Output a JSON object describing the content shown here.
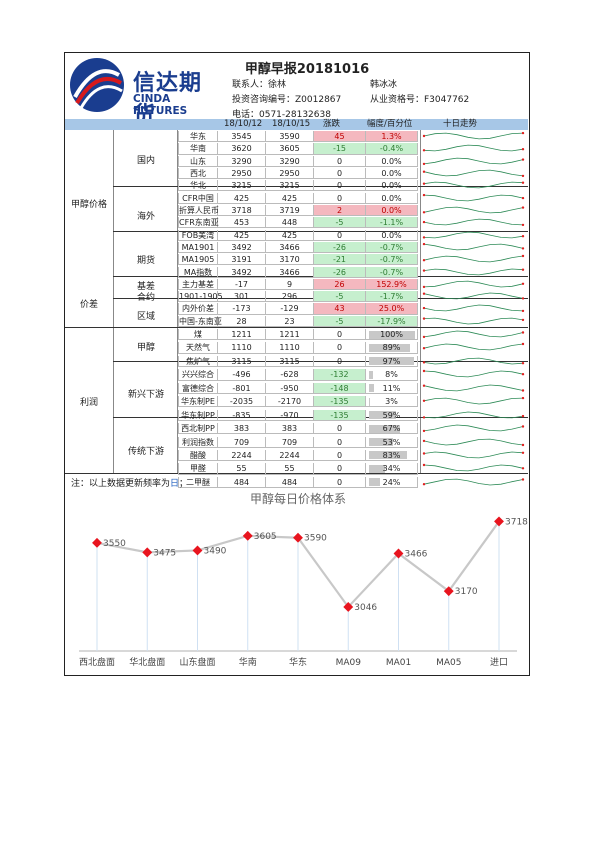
{
  "header": {
    "logo_cn": "信达期货",
    "logo_en": "CINDA FUTURES",
    "title": "甲醇早报20181016",
    "contact_label": "联系人：徐林",
    "contact2": "韩冰冰",
    "advisor_id": "投资咨询编号：Z0012867",
    "license_id": "从业资格号：F3047762",
    "phone": "电话：0571-28132638"
  },
  "columns": {
    "d1": "18/10/12",
    "d2": "18/10/15",
    "chg": "涨跌",
    "pct": "幅度/百分位",
    "trend": "十日走势"
  },
  "groups": {
    "methanol_price": "甲醇价格",
    "spread": "价差",
    "profit": "利润"
  },
  "sections": {
    "domestic": "国内",
    "overseas": "海外",
    "futures": "期货",
    "basis": "基差",
    "contract": "合约",
    "region": "区域",
    "methanol": "甲醇",
    "new_downstream": "新兴下游",
    "trad_downstream": "传统下游"
  },
  "rows": [
    {
      "name": "华东",
      "v1": "3545",
      "v2": "3590",
      "chg": "45",
      "pct": "1.3%",
      "sign": "pos"
    },
    {
      "name": "华南",
      "v1": "3620",
      "v2": "3605",
      "chg": "-15",
      "pct": "-0.4%",
      "sign": "neg"
    },
    {
      "name": "山东",
      "v1": "3290",
      "v2": "3290",
      "chg": "0",
      "pct": "0.0%",
      "sign": ""
    },
    {
      "name": "西北",
      "v1": "2950",
      "v2": "2950",
      "chg": "0",
      "pct": "0.0%",
      "sign": ""
    },
    {
      "name": "华北",
      "v1": "3215",
      "v2": "3215",
      "chg": "0",
      "pct": "0.0%",
      "sign": ""
    },
    {
      "name": "CFR中国",
      "v1": "425",
      "v2": "425",
      "chg": "0",
      "pct": "0.0%",
      "sign": ""
    },
    {
      "name": "折算人民币",
      "v1": "3718",
      "v2": "3719",
      "chg": "2",
      "pct": "0.0%",
      "sign": "pos"
    },
    {
      "name": "CFR东南亚",
      "v1": "453",
      "v2": "448",
      "chg": "-5",
      "pct": "-1.1%",
      "sign": "neg"
    },
    {
      "name": "FOB美湾",
      "v1": "425",
      "v2": "425",
      "chg": "0",
      "pct": "0.0%",
      "sign": ""
    },
    {
      "name": "MA1901",
      "v1": "3492",
      "v2": "3466",
      "chg": "-26",
      "pct": "-0.7%",
      "sign": "neg"
    },
    {
      "name": "MA1905",
      "v1": "3191",
      "v2": "3170",
      "chg": "-21",
      "pct": "-0.7%",
      "sign": "neg"
    },
    {
      "name": "MA指数",
      "v1": "3492",
      "v2": "3466",
      "chg": "-26",
      "pct": "-0.7%",
      "sign": "neg"
    },
    {
      "name": "主力基差",
      "v1": "-17",
      "v2": "9",
      "chg": "26",
      "pct": "152.9%",
      "sign": "pos"
    },
    {
      "name": "1901-1905",
      "v1": "301",
      "v2": "296",
      "chg": "-5",
      "pct": "-1.7%",
      "sign": "neg"
    },
    {
      "name": "内外价差",
      "v1": "-173",
      "v2": "-129",
      "chg": "43",
      "pct": "25.0%",
      "sign": "pos"
    },
    {
      "name": "中国-东南亚",
      "v1": "28",
      "v2": "23",
      "chg": "-5",
      "pct": "-17.9%",
      "sign": "neg"
    },
    {
      "name": "煤",
      "v1": "1211",
      "v2": "1211",
      "chg": "0",
      "pct": "100%",
      "sign": "",
      "bar": 1.0
    },
    {
      "name": "天然气",
      "v1": "1110",
      "v2": "1110",
      "chg": "0",
      "pct": "89%",
      "sign": "",
      "bar": 0.89
    },
    {
      "name": "焦炉气",
      "v1": "3115",
      "v2": "3115",
      "chg": "0",
      "pct": "97%",
      "sign": "",
      "bar": 0.97
    },
    {
      "name": "兴兴综合",
      "v1": "-496",
      "v2": "-628",
      "chg": "-132",
      "pct": "8%",
      "sign": "neg",
      "bar": 0.08
    },
    {
      "name": "富德综合",
      "v1": "-801",
      "v2": "-950",
      "chg": "-148",
      "pct": "11%",
      "sign": "neg",
      "bar": 0.11
    },
    {
      "name": "华东制PE",
      "v1": "-2035",
      "v2": "-2170",
      "chg": "-135",
      "pct": "3%",
      "sign": "neg",
      "bar": 0.03
    },
    {
      "name": "华东制PP",
      "v1": "-835",
      "v2": "-970",
      "chg": "-135",
      "pct": "59%",
      "sign": "neg",
      "bar": 0.59
    },
    {
      "name": "西北制PP",
      "v1": "383",
      "v2": "383",
      "chg": "0",
      "pct": "67%",
      "sign": "",
      "bar": 0.67
    },
    {
      "name": "利润指数",
      "v1": "709",
      "v2": "709",
      "chg": "0",
      "pct": "53%",
      "sign": "",
      "bar": 0.53
    },
    {
      "name": "醋酸",
      "v1": "2244",
      "v2": "2244",
      "chg": "0",
      "pct": "83%",
      "sign": "",
      "bar": 0.83
    },
    {
      "name": "甲醛",
      "v1": "55",
      "v2": "55",
      "chg": "0",
      "pct": "34%",
      "sign": "",
      "bar": 0.34
    },
    {
      "name": "二甲醚",
      "v1": "484",
      "v2": "484",
      "chg": "0",
      "pct": "24%",
      "sign": "",
      "bar": 0.24
    }
  ],
  "note": {
    "prefix": "注：以上数据更新频率为",
    "freq": "日",
    "suffix": "；"
  },
  "colors": {
    "pos_bg": "#f4b8bf",
    "neg_bg": "#c6efce",
    "pos_text": "#c00000",
    "neg_text": "#2e7d32",
    "header_bar": "#a7c7e7",
    "spark_line": "#2e8b57",
    "spark_mark": "#e02020",
    "chart_line": "#c8c8c8",
    "chart_marker": "#e8141e"
  },
  "chart_data": {
    "type": "line",
    "title": "甲醇每日价格体系",
    "categories": [
      "西北盘面",
      "华北盘面",
      "山东盘面",
      "华南",
      "华东",
      "MA09",
      "MA01",
      "MA05",
      "进口"
    ],
    "values": [
      3550,
      3475,
      3490,
      3605,
      3590,
      3046,
      3466,
      3170,
      3718
    ],
    "ylim": [
      2700,
      3800
    ],
    "grid": false,
    "legend": "none"
  }
}
